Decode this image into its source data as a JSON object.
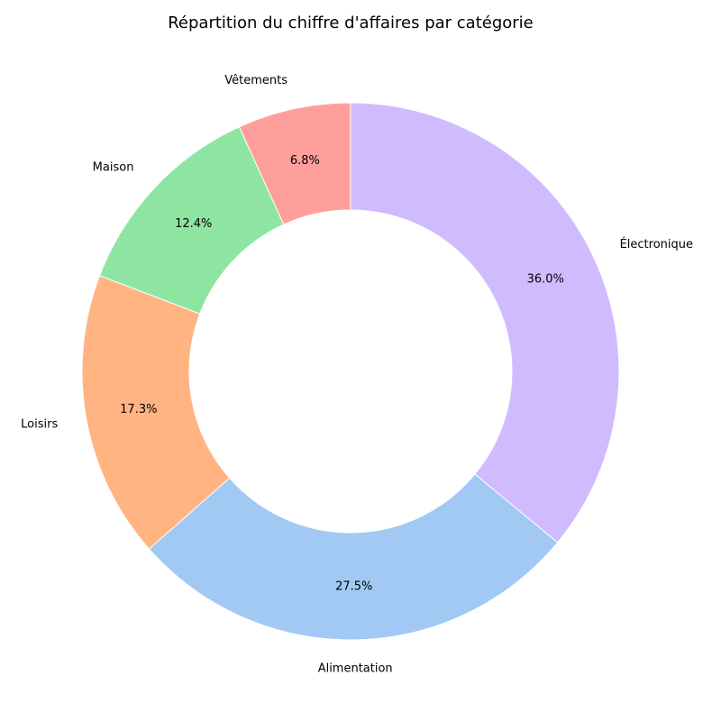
{
  "chart_data": {
    "type": "pie",
    "title": "Répartition du chiffre d'affaires par catégorie",
    "categories": [
      "Électronique",
      "Alimentation",
      "Loisirs",
      "Maison",
      "Vêtements"
    ],
    "values": [
      36.0,
      27.5,
      17.3,
      12.4,
      6.8
    ],
    "value_labels": [
      "36.0%",
      "27.5%",
      "17.3%",
      "12.4%",
      "6.8%"
    ],
    "colors": [
      "#d0bbff",
      "#a1c9f4",
      "#ffb482",
      "#8de5a1",
      "#ff9f9b"
    ],
    "donut": true,
    "start_angle": "top",
    "direction": "clockwise",
    "legend": "none"
  }
}
